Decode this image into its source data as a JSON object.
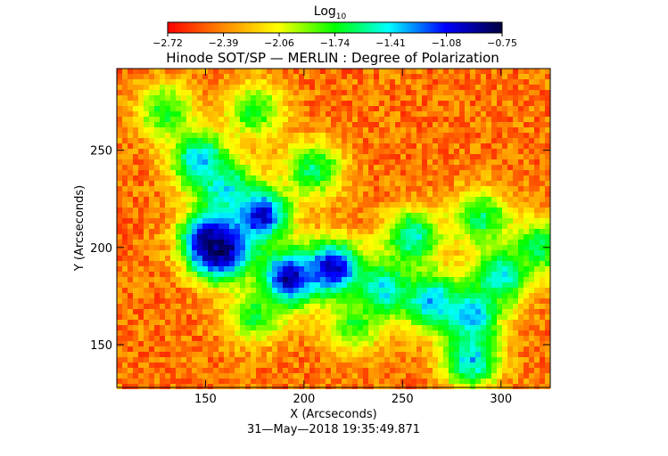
{
  "chart_data": {
    "type": "heatmap",
    "title": "Hinode SOT/SP — MERLIN : Degree of Polarization",
    "xlabel": "X (Arcseconds)",
    "ylabel": "Y (Arcseconds)",
    "footer": "31—May—2018 19:35:49.871",
    "xlim": [
      105,
      325
    ],
    "ylim": [
      128,
      292
    ],
    "x_ticks": [
      150,
      200,
      250,
      300
    ],
    "y_ticks": [
      150,
      200,
      250
    ],
    "colorbar": {
      "label_base": "Log",
      "label_sub": "10",
      "range": [
        -2.72,
        -0.75
      ],
      "ticks": [
        "−2.72",
        "−2.39",
        "−2.06",
        "−1.74",
        "−1.41",
        "−1.08",
        "−0.75"
      ],
      "colormap": [
        "#ff0000",
        "#ff8c00",
        "#ffff00",
        "#00ff00",
        "#00ffff",
        "#0000ff",
        "#000040"
      ]
    },
    "features": [
      {
        "x": 153,
        "y": 204,
        "value": -0.8
      },
      {
        "x": 158,
        "y": 198,
        "value": -0.85
      },
      {
        "x": 178,
        "y": 217,
        "value": -0.95
      },
      {
        "x": 192,
        "y": 184,
        "value": -0.85
      },
      {
        "x": 215,
        "y": 189,
        "value": -0.9
      },
      {
        "x": 147,
        "y": 245,
        "value": -1.3
      },
      {
        "x": 160,
        "y": 230,
        "value": -1.4
      },
      {
        "x": 205,
        "y": 240,
        "value": -1.6
      },
      {
        "x": 240,
        "y": 178,
        "value": -1.35
      },
      {
        "x": 265,
        "y": 172,
        "value": -1.3
      },
      {
        "x": 285,
        "y": 165,
        "value": -1.3
      },
      {
        "x": 300,
        "y": 185,
        "value": -1.4
      },
      {
        "x": 290,
        "y": 215,
        "value": -1.6
      },
      {
        "x": 255,
        "y": 205,
        "value": -1.45
      },
      {
        "x": 175,
        "y": 270,
        "value": -1.7
      },
      {
        "x": 130,
        "y": 270,
        "value": -1.7
      },
      {
        "x": 285,
        "y": 142,
        "value": -1.35
      },
      {
        "x": 175,
        "y": 165,
        "value": -1.7
      },
      {
        "x": 225,
        "y": 160,
        "value": -1.75
      },
      {
        "x": 320,
        "y": 200,
        "value": -1.6
      }
    ]
  }
}
